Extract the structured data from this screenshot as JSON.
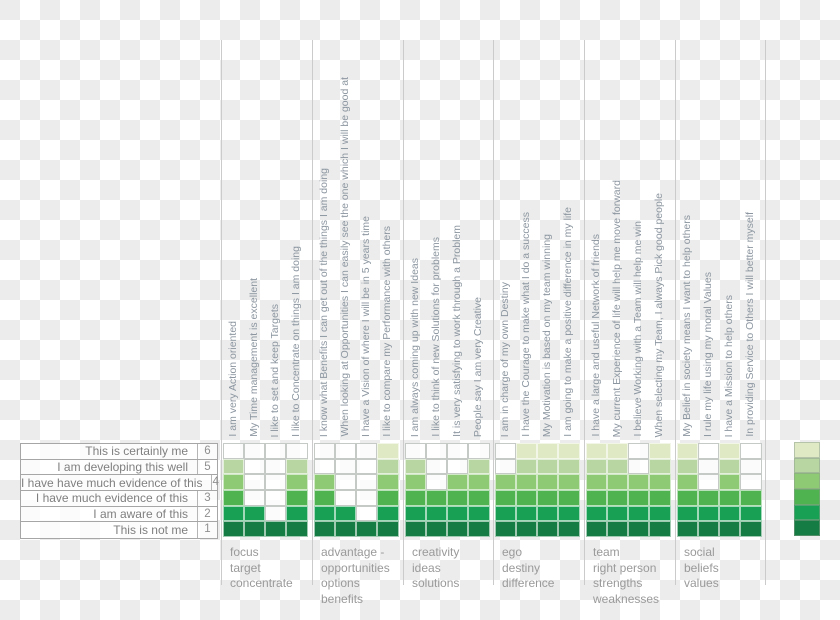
{
  "chart_data": {
    "type": "heatmap",
    "title": "",
    "description": "Self-assessment matrix: each statement column is filled with green from score 1 (bottom, darkest) up to its rating level (lighter toward 6).",
    "score_scale": [
      {
        "score": "6",
        "label": "This is certainly me"
      },
      {
        "score": "5",
        "label": "I am developing this well"
      },
      {
        "score": "4",
        "label": "I have have much evidence of this"
      },
      {
        "score": "3",
        "label": "I have much evidence of this"
      },
      {
        "score": "2",
        "label": "I am aware of this"
      },
      {
        "score": "1",
        "label": "This is not me"
      }
    ],
    "groups": [
      {
        "label_lines": [
          "focus",
          "target",
          "concentrate"
        ],
        "columns": [
          {
            "statement": "I am very Action oriented",
            "score": 5
          },
          {
            "statement": "My Time management is excellent",
            "score": 2
          },
          {
            "statement": "I like to set and keep Targets",
            "score": 1
          },
          {
            "statement": "I like to Concentrate on things I am doing",
            "score": 5
          }
        ]
      },
      {
        "label_lines": [
          "advantage -",
          "opportunities",
          "options",
          "benefits"
        ],
        "columns": [
          {
            "statement": "I know what Benefits I can get out of the things I am doing",
            "score": 4
          },
          {
            "statement": "When looking at Opportunities I can easily see the one which I will be good at",
            "score": 2
          },
          {
            "statement": "I have a Vision of where I will be in 5 years time",
            "score": 1
          },
          {
            "statement": "I like to compare my Performance with others",
            "score": 6
          }
        ]
      },
      {
        "label_lines": [
          "creativity",
          "ideas",
          "solutions"
        ],
        "columns": [
          {
            "statement": "I am always coming up with new Ideas",
            "score": 5
          },
          {
            "statement": "I like to think of new Solutions for problems",
            "score": 3
          },
          {
            "statement": "It is very satisfying to work through a Problem",
            "score": 4
          },
          {
            "statement": "People say I am very Creative",
            "score": 5
          }
        ]
      },
      {
        "label_lines": [
          "ego",
          "destiny",
          "difference"
        ],
        "columns": [
          {
            "statement": "I am in charge of my own Destiny",
            "score": 4
          },
          {
            "statement": "I have the Courage to make what I do a success",
            "score": 6
          },
          {
            "statement": "My Motivation is based on my team winning",
            "score": 6
          },
          {
            "statement": "I am going to make a positive difference in my life",
            "score": 6
          }
        ]
      },
      {
        "label_lines": [
          "team",
          "right person",
          "strengths",
          "weaknesses"
        ],
        "columns": [
          {
            "statement": "I have a large and useful Network of friends",
            "score": 6
          },
          {
            "statement": "My current Experience of life will help me move forward",
            "score": 6
          },
          {
            "statement": "I believe Working with a Team will help me win",
            "score": 4
          },
          {
            "statement": "When selecting my Team, I always Pick good people",
            "score": 6
          }
        ]
      },
      {
        "label_lines": [
          "social",
          "beliefs",
          "values"
        ],
        "columns": [
          {
            "statement": "My Belief in society means I want to help others",
            "score": 6
          },
          {
            "statement": "I rule my life using my moral Values",
            "score": 3
          },
          {
            "statement": "I have a Mission to help others",
            "score": 6
          },
          {
            "statement": "In providing Service to Others I will better myself",
            "score": 3
          }
        ]
      }
    ],
    "score_colors": {
      "1": "#157c43",
      "2": "#18a154",
      "3": "#4fb350",
      "4": "#8ec974",
      "5": "#b8d6a2",
      "6": "#dfe9c4"
    },
    "legend": {
      "position": "right",
      "order_top_to_bottom": [
        6,
        5,
        4,
        3,
        2,
        1
      ]
    },
    "grid": "on",
    "ylim": [
      1,
      6
    ]
  }
}
